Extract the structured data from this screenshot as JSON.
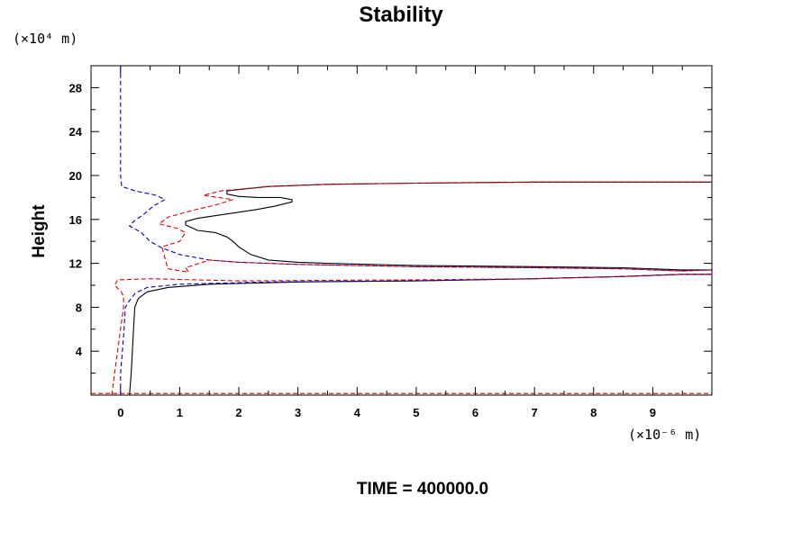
{
  "chart_data": {
    "type": "line",
    "title": "Stability",
    "ylabel": "Height",
    "y_unit": "(×10⁴ m)",
    "x_unit": "(×10⁻⁶ m)",
    "footer": "TIME = 400000.0",
    "xlim": [
      -0.5,
      10
    ],
    "ylim": [
      0,
      30
    ],
    "x_ticks": [
      0,
      1,
      2,
      3,
      4,
      5,
      6,
      7,
      8,
      9
    ],
    "y_ticks": [
      4,
      8,
      12,
      16,
      20,
      24,
      28
    ],
    "grid": false,
    "series": [
      {
        "color": "#000000",
        "dash": "solid",
        "points": [
          [
            0.15,
            0
          ],
          [
            0.18,
            2
          ],
          [
            0.2,
            4
          ],
          [
            0.22,
            6
          ],
          [
            0.24,
            8
          ],
          [
            0.3,
            8.8
          ],
          [
            0.45,
            9.4
          ],
          [
            0.8,
            9.8
          ],
          [
            1.5,
            10.1
          ],
          [
            3,
            10.3
          ],
          [
            5,
            10.4
          ],
          [
            7,
            10.6
          ],
          [
            8.5,
            10.8
          ],
          [
            9.5,
            11.0
          ],
          [
            10,
            11.0
          ],
          [
            10,
            11.4
          ],
          [
            9.5,
            11.4
          ],
          [
            8.5,
            11.6
          ],
          [
            7,
            11.7
          ],
          [
            5,
            11.8
          ],
          [
            3.5,
            12.0
          ],
          [
            3,
            12.1
          ],
          [
            2.5,
            12.3
          ],
          [
            2.2,
            12.8
          ],
          [
            2.0,
            13.5
          ],
          [
            1.9,
            14.0
          ],
          [
            1.8,
            14.4
          ],
          [
            1.6,
            14.8
          ],
          [
            1.3,
            15.0
          ],
          [
            1.1,
            15.5
          ],
          [
            1.1,
            15.8
          ],
          [
            1.3,
            16.1
          ],
          [
            1.8,
            16.5
          ],
          [
            2.3,
            16.9
          ],
          [
            2.6,
            17.2
          ],
          [
            2.9,
            17.6
          ],
          [
            2.9,
            17.8
          ],
          [
            2.7,
            18.0
          ],
          [
            2.3,
            18.0
          ],
          [
            2.0,
            18.1
          ],
          [
            1.8,
            18.3
          ],
          [
            1.8,
            18.6
          ],
          [
            2.5,
            19.0
          ],
          [
            3.5,
            19.2
          ],
          [
            5,
            19.3
          ],
          [
            7,
            19.4
          ],
          [
            10,
            19.4
          ]
        ]
      },
      {
        "color": "#0000cc",
        "dash": "dashed",
        "points": [
          [
            0,
            0
          ],
          [
            0,
            2
          ],
          [
            0.03,
            4
          ],
          [
            0.06,
            6
          ],
          [
            0.08,
            8
          ],
          [
            0.15,
            8.6
          ],
          [
            0.25,
            9.3
          ],
          [
            0.45,
            9.8
          ],
          [
            1,
            10.1
          ],
          [
            2.5,
            10.3
          ],
          [
            5,
            10.4
          ],
          [
            7,
            10.6
          ],
          [
            8.5,
            10.8
          ],
          [
            9.5,
            11.0
          ],
          [
            10,
            11.0
          ],
          [
            10,
            11.4
          ],
          [
            9.5,
            11.3
          ],
          [
            8.5,
            11.5
          ],
          [
            7,
            11.6
          ],
          [
            5,
            11.7
          ],
          [
            3,
            11.9
          ],
          [
            2,
            12.1
          ],
          [
            1.5,
            12.3
          ],
          [
            1,
            12.8
          ],
          [
            0.7,
            13.4
          ],
          [
            0.5,
            14.0
          ],
          [
            0.35,
            14.8
          ],
          [
            0.15,
            15.4
          ],
          [
            0.22,
            15.8
          ],
          [
            0.4,
            16.5
          ],
          [
            0.55,
            17.2
          ],
          [
            0.75,
            17.8
          ],
          [
            0.6,
            18.2
          ],
          [
            0.25,
            18.6
          ],
          [
            0.02,
            19.0
          ],
          [
            0,
            20
          ],
          [
            0,
            24
          ],
          [
            0,
            28
          ],
          [
            0,
            30
          ]
        ]
      },
      {
        "color": "#dd0000",
        "dash": "dashed",
        "points": [
          [
            -0.15,
            0
          ],
          [
            -0.1,
            2
          ],
          [
            -0.05,
            4
          ],
          [
            0,
            6
          ],
          [
            0.05,
            8
          ],
          [
            0.05,
            9.0
          ],
          [
            0.0,
            9.5
          ],
          [
            -0.1,
            10.0
          ],
          [
            -0.05,
            10.5
          ],
          [
            0.5,
            10.6
          ],
          [
            2,
            10.4
          ],
          [
            5,
            10.5
          ],
          [
            7,
            10.6
          ],
          [
            8.5,
            10.8
          ],
          [
            9.5,
            11.0
          ],
          [
            10,
            11.0
          ],
          [
            10,
            11.4
          ],
          [
            9.5,
            11.3
          ],
          [
            8.5,
            11.5
          ],
          [
            7,
            11.6
          ],
          [
            5,
            11.7
          ],
          [
            3,
            11.9
          ],
          [
            2,
            12.1
          ],
          [
            1.5,
            12.3
          ],
          [
            1.1,
            11.6
          ],
          [
            1.15,
            11.2
          ],
          [
            0.8,
            11.5
          ],
          [
            0.75,
            12.5
          ],
          [
            0.7,
            13.5
          ],
          [
            1.0,
            14.0
          ],
          [
            1.1,
            14.8
          ],
          [
            0.95,
            15.2
          ],
          [
            0.65,
            15.6
          ],
          [
            0.8,
            16.2
          ],
          [
            1.2,
            16.8
          ],
          [
            1.6,
            17.3
          ],
          [
            1.9,
            17.8
          ],
          [
            1.4,
            18.2
          ],
          [
            1.7,
            18.6
          ],
          [
            2.5,
            19.0
          ],
          [
            3.5,
            19.2
          ],
          [
            5,
            19.3
          ],
          [
            7,
            19.4
          ],
          [
            10,
            19.4
          ]
        ]
      },
      {
        "color": "#dd0000",
        "dash": "dashed",
        "points": [
          [
            -0.5,
            0.15
          ],
          [
            10,
            0.15
          ]
        ]
      }
    ]
  }
}
